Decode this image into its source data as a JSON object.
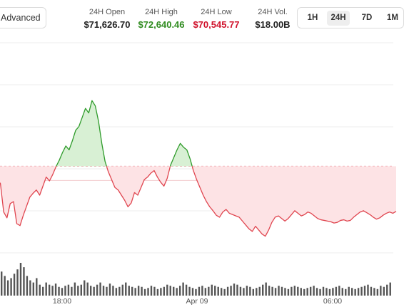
{
  "toolbar": {
    "advanced_label": "Advanced"
  },
  "stats": [
    {
      "label": "24H Open",
      "value": "$71,626.70",
      "color": "#222222"
    },
    {
      "label": "24H High",
      "value": "$72,640.46",
      "color": "#2e8b1e"
    },
    {
      "label": "24H Low",
      "value": "$70,545.77",
      "color": "#d0102a"
    },
    {
      "label": "24H Vol.",
      "value": "$18.00B",
      "color": "#222222"
    }
  ],
  "ranges": [
    {
      "label": "1H",
      "active": false
    },
    {
      "label": "24H",
      "active": true
    },
    {
      "label": "7D",
      "active": false
    },
    {
      "label": "1M",
      "active": false
    }
  ],
  "colors": {
    "up": "#2e9b2a",
    "down": "#e0454f",
    "down_fill": "#fde3e5",
    "up_fill": "#d8f0d4",
    "grid": "#ececec",
    "volume": "#555555"
  },
  "chart_data": {
    "type": "line",
    "baseline": 71626.7,
    "ylim": [
      70300,
      73600
    ],
    "x_ticks": [
      "18:00",
      "Apr 09",
      "06:00"
    ],
    "price": [
      71420,
      71360,
      70920,
      70830,
      71050,
      71080,
      70740,
      70710,
      70870,
      71010,
      71150,
      71210,
      71260,
      71180,
      71320,
      71460,
      71400,
      71500,
      71620,
      71720,
      71840,
      71940,
      71880,
      72020,
      72180,
      72240,
      72380,
      72520,
      72450,
      72640,
      72560,
      72320,
      71980,
      71700,
      71540,
      71420,
      71300,
      71260,
      71180,
      71100,
      71000,
      71060,
      71220,
      71180,
      71300,
      71420,
      71460,
      71520,
      71560,
      71460,
      71380,
      71320,
      71440,
      71640,
      71760,
      71880,
      71980,
      71920,
      71880,
      71740,
      71560,
      71420,
      71300,
      71180,
      71080,
      71000,
      70940,
      70870,
      70840,
      70920,
      70960,
      70900,
      70880,
      70860,
      70840,
      70780,
      70720,
      70660,
      70620,
      70700,
      70640,
      70580,
      70546,
      70640,
      70760,
      70840,
      70860,
      70820,
      70780,
      70820,
      70880,
      70940,
      70900,
      70860,
      70880,
      70920,
      70900,
      70860,
      70820,
      70800,
      70790,
      70780,
      70770,
      70750,
      70760,
      70790,
      70800,
      70780,
      70790,
      70840,
      70880,
      70920,
      70940,
      70910,
      70880,
      70840,
      70810,
      70830,
      70870,
      70900,
      70920,
      70900,
      70930
    ],
    "volume": [
      22,
      18,
      14,
      16,
      20,
      24,
      30,
      26,
      18,
      14,
      12,
      16,
      10,
      8,
      12,
      10,
      9,
      11,
      8,
      7,
      9,
      10,
      8,
      12,
      9,
      10,
      14,
      12,
      9,
      8,
      10,
      12,
      9,
      8,
      11,
      9,
      7,
      8,
      10,
      12,
      9,
      8,
      7,
      9,
      8,
      6,
      7,
      9,
      8,
      6,
      7,
      8,
      10,
      9,
      8,
      7,
      9,
      12,
      10,
      8,
      7,
      6,
      8,
      9,
      7,
      8,
      10,
      9,
      8,
      7,
      6,
      8,
      9,
      11,
      10,
      8,
      7,
      9,
      8,
      6,
      7,
      8,
      10,
      12,
      9,
      8,
      7,
      9,
      8,
      7,
      6,
      8,
      9,
      8,
      7,
      6,
      7,
      8,
      9,
      7,
      6,
      8,
      7,
      6,
      7,
      8,
      9,
      7,
      6,
      8,
      7,
      6,
      7,
      8,
      9,
      10,
      8,
      7,
      6,
      9,
      8,
      10,
      12
    ]
  }
}
